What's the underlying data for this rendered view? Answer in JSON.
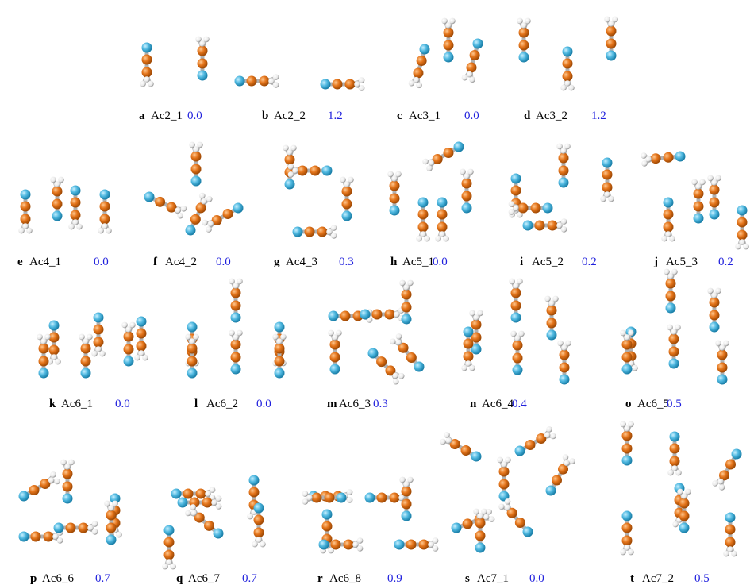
{
  "figure": {
    "panels": [
      {
        "letter": "a",
        "name": "Ac2_1",
        "energy": "0.0"
      },
      {
        "letter": "b",
        "name": "Ac2_2",
        "energy": "1.2"
      },
      {
        "letter": "c",
        "name": "Ac3_1",
        "energy": "0.0"
      },
      {
        "letter": "d",
        "name": "Ac3_2",
        "energy": "1.2"
      },
      {
        "letter": "e",
        "name": "Ac4_1",
        "energy": "0.0"
      },
      {
        "letter": "f",
        "name": "Ac4_2",
        "energy": "0.0"
      },
      {
        "letter": "g",
        "name": "Ac4_3",
        "energy": "0.3"
      },
      {
        "letter": "h",
        "name": "Ac5_1",
        "energy": "0.0"
      },
      {
        "letter": "i",
        "name": "Ac5_2",
        "energy": "0.2"
      },
      {
        "letter": "j",
        "name": "Ac5_3",
        "energy": "0.2"
      },
      {
        "letter": "k",
        "name": "Ac6_1",
        "energy": "0.0"
      },
      {
        "letter": "l",
        "name": "Ac6_2",
        "energy": "0.0"
      },
      {
        "letter": "m",
        "name": "Ac6_3",
        "energy": "0.3"
      },
      {
        "letter": "n",
        "name": "Ac6_4",
        "energy": "0.4"
      },
      {
        "letter": "o",
        "name": "Ac6_5",
        "energy": "0.5"
      },
      {
        "letter": "p",
        "name": "Ac6_6",
        "energy": "0.7"
      },
      {
        "letter": "q",
        "name": "Ac6_7",
        "energy": "0.7"
      },
      {
        "letter": "r",
        "name": "Ac6_8",
        "energy": "0.9"
      },
      {
        "letter": "s",
        "name": "Ac7_1",
        "energy": "0.0"
      },
      {
        "letter": "t",
        "name": "Ac7_2",
        "energy": "0.5"
      }
    ]
  }
}
